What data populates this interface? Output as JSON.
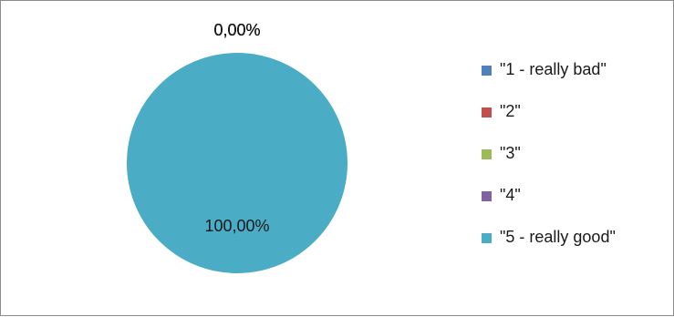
{
  "chart_data": {
    "type": "pie",
    "categories": [
      "\"1 - really bad\"",
      "\"2\"",
      "\"3\"",
      "\"4\"",
      "\"5 - really good\""
    ],
    "values": [
      0,
      0,
      0,
      0,
      100
    ],
    "percent_labels": [
      "0,00%",
      "0,00%",
      "0,00%",
      "0,00%",
      "100,00%"
    ],
    "colors": [
      "#4f81bd",
      "#c0504d",
      "#9bbb59",
      "#8064a2",
      "#4bacc6"
    ],
    "legend": "right",
    "title": ""
  }
}
